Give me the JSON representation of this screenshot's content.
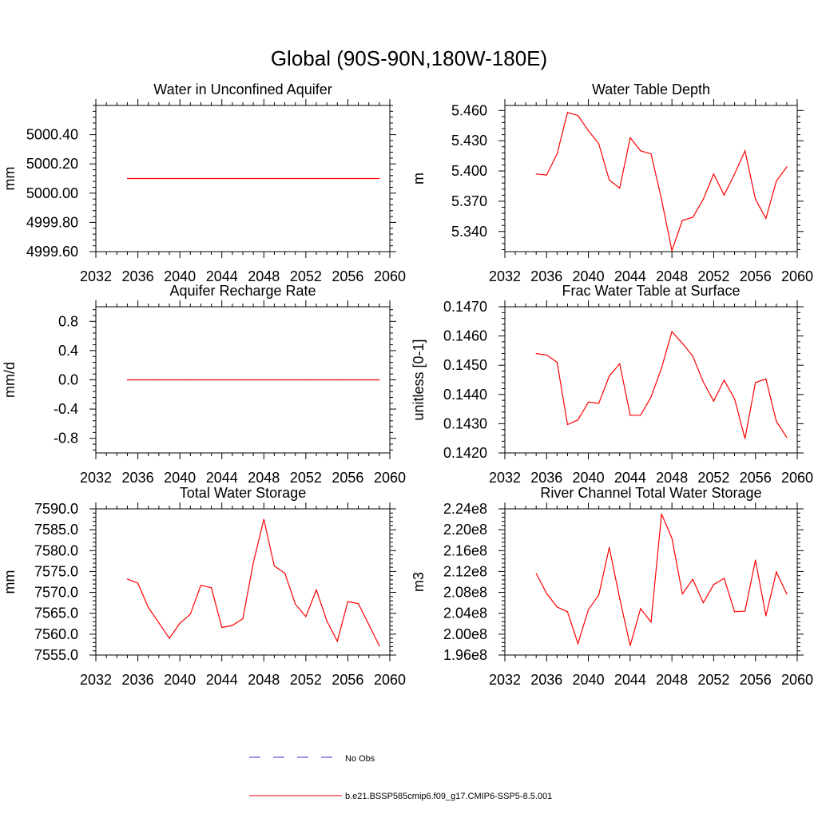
{
  "main_title": "Global (90S-90N,180W-180E)",
  "colors": {
    "model": "#ff0000",
    "obs": "#3333cc",
    "axis": "#000000"
  },
  "legend": {
    "obs_label": "No Obs",
    "model_label": "b.e21.BSSP585cmip6.f09_g17.CMIP6-SSP5-8.5.001"
  },
  "chart_data": [
    {
      "type": "line",
      "title": "Water in Unconfined Aquifer",
      "ylabel": "mm",
      "xlim": [
        2032,
        2060
      ],
      "ylim": [
        4999.6,
        5000.6
      ],
      "xticks": [
        "2032",
        "2036",
        "2040",
        "2044",
        "2048",
        "2052",
        "2056",
        "2060"
      ],
      "yticks": [
        "4999.60",
        "4999.80",
        "5000.00",
        "5000.20",
        "5000.40"
      ],
      "series": [
        {
          "x": [
            2035,
            2036,
            2037,
            2038,
            2039,
            2040,
            2041,
            2042,
            2043,
            2044,
            2045,
            2046,
            2047,
            2048,
            2049,
            2050,
            2051,
            2052,
            2053,
            2054,
            2055,
            2056,
            2057,
            2058,
            2059
          ],
          "values": [
            5000.1,
            5000.1,
            5000.1,
            5000.1,
            5000.1,
            5000.1,
            5000.1,
            5000.1,
            5000.1,
            5000.1,
            5000.1,
            5000.1,
            5000.1,
            5000.1,
            5000.1,
            5000.1,
            5000.1,
            5000.1,
            5000.1,
            5000.1,
            5000.1,
            5000.1,
            5000.1,
            5000.1,
            5000.1
          ]
        }
      ]
    },
    {
      "type": "line",
      "title": "Water Table Depth",
      "ylabel": "m",
      "xlim": [
        2032,
        2060
      ],
      "ylim": [
        5.32,
        5.465
      ],
      "xticks": [
        "2032",
        "2036",
        "2040",
        "2044",
        "2048",
        "2052",
        "2056",
        "2060"
      ],
      "yticks": [
        "5.340",
        "5.370",
        "5.400",
        "5.430",
        "5.460"
      ],
      "series": [
        {
          "x": [
            2035,
            2036,
            2037,
            2038,
            2039,
            2040,
            2041,
            2042,
            2043,
            2044,
            2045,
            2046,
            2047,
            2048,
            2049,
            2050,
            2051,
            2052,
            2053,
            2054,
            2055,
            2056,
            2057,
            2058,
            2059
          ],
          "values": [
            5.397,
            5.396,
            5.417,
            5.458,
            5.455,
            5.44,
            5.427,
            5.391,
            5.383,
            5.433,
            5.42,
            5.417,
            5.372,
            5.321,
            5.351,
            5.354,
            5.372,
            5.397,
            5.376,
            5.397,
            5.42,
            5.372,
            5.353,
            5.39,
            5.404
          ]
        }
      ]
    },
    {
      "type": "line",
      "title": "Aquifer Recharge Rate",
      "ylabel": "mm/d",
      "xlim": [
        2032,
        2060
      ],
      "ylim": [
        -1.0,
        1.0
      ],
      "xticks": [
        "2032",
        "2036",
        "2040",
        "2044",
        "2048",
        "2052",
        "2056",
        "2060"
      ],
      "yticks": [
        "-0.8",
        "-0.4",
        "0.0",
        "0.4",
        "0.8"
      ],
      "series": [
        {
          "x": [
            2035,
            2036,
            2037,
            2038,
            2039,
            2040,
            2041,
            2042,
            2043,
            2044,
            2045,
            2046,
            2047,
            2048,
            2049,
            2050,
            2051,
            2052,
            2053,
            2054,
            2055,
            2056,
            2057,
            2058,
            2059
          ],
          "values": [
            0,
            0,
            0,
            0,
            0,
            0,
            0,
            0,
            0,
            0,
            0,
            0,
            0,
            0,
            0,
            0,
            0,
            0,
            0,
            0,
            0,
            0,
            0,
            0,
            0
          ]
        }
      ]
    },
    {
      "type": "line",
      "title": "Frac Water Table at Surface",
      "ylabel": "unitless [0-1]",
      "xlim": [
        2032,
        2060
      ],
      "ylim": [
        0.142,
        0.147
      ],
      "xticks": [
        "2032",
        "2036",
        "2040",
        "2044",
        "2048",
        "2052",
        "2056",
        "2060"
      ],
      "yticks": [
        "0.1420",
        "0.1430",
        "0.1440",
        "0.1450",
        "0.1460",
        "0.1470"
      ],
      "series": [
        {
          "x": [
            2035,
            2036,
            2037,
            2038,
            2039,
            2040,
            2041,
            2042,
            2043,
            2044,
            2045,
            2046,
            2047,
            2048,
            2049,
            2050,
            2051,
            2052,
            2053,
            2054,
            2055,
            2056,
            2057,
            2058,
            2059
          ],
          "values": [
            0.1454,
            0.14535,
            0.1451,
            0.14297,
            0.14313,
            0.14374,
            0.1437,
            0.14463,
            0.14505,
            0.14329,
            0.14329,
            0.14391,
            0.1449,
            0.14615,
            0.14575,
            0.14531,
            0.14443,
            0.14377,
            0.14449,
            0.14385,
            0.14249,
            0.14441,
            0.14453,
            0.14308,
            0.14253
          ]
        }
      ]
    },
    {
      "type": "line",
      "title": "Total Water Storage",
      "ylabel": "mm",
      "xlim": [
        2032,
        2060
      ],
      "ylim": [
        7555.0,
        7590.0
      ],
      "xticks": [
        "2032",
        "2036",
        "2040",
        "2044",
        "2048",
        "2052",
        "2056",
        "2060"
      ],
      "yticks": [
        "7555.0",
        "7560.0",
        "7565.0",
        "7570.0",
        "7575.0",
        "7580.0",
        "7585.0",
        "7590.0"
      ],
      "series": [
        {
          "x": [
            2035,
            2036,
            2037,
            2038,
            2039,
            2040,
            2041,
            2042,
            2043,
            2044,
            2045,
            2046,
            2047,
            2048,
            2049,
            2050,
            2051,
            2052,
            2053,
            2054,
            2055,
            2056,
            2057,
            2058,
            2059
          ],
          "values": [
            7573.2,
            7572.2,
            7566.4,
            7562.7,
            7559.0,
            7562.6,
            7564.8,
            7571.7,
            7571.1,
            7561.6,
            7562.1,
            7563.7,
            7577.1,
            7587.5,
            7576.3,
            7574.6,
            7567.2,
            7564.2,
            7570.6,
            7563.2,
            7558.3,
            7567.8,
            7567.3,
            7562.3,
            7557.2
          ]
        }
      ]
    },
    {
      "type": "line",
      "title": "River Channel Total Water Storage",
      "ylabel": "m3",
      "xlim": [
        2032,
        2060
      ],
      "ylim": [
        196000000.0,
        224000000.0
      ],
      "xticks": [
        "2032",
        "2036",
        "2040",
        "2044",
        "2048",
        "2052",
        "2056",
        "2060"
      ],
      "yticks": [
        "1.96e8",
        "2.00e8",
        "2.04e8",
        "2.08e8",
        "2.12e8",
        "2.16e8",
        "2.20e8",
        "2.24e8"
      ],
      "series": [
        {
          "x": [
            2035,
            2036,
            2037,
            2038,
            2039,
            2040,
            2041,
            2042,
            2043,
            2044,
            2045,
            2046,
            2047,
            2048,
            2049,
            2050,
            2051,
            2052,
            2053,
            2054,
            2055,
            2056,
            2057,
            2058,
            2059
          ],
          "values": [
            211600000.0,
            207800000.0,
            205200000.0,
            204300000.0,
            198200000.0,
            204700000.0,
            207500000.0,
            216600000.0,
            206800000.0,
            197800000.0,
            204900000.0,
            202300000.0,
            223000000.0,
            218400000.0,
            207700000.0,
            210500000.0,
            206000000.0,
            209500000.0,
            210700000.0,
            204300000.0,
            204400000.0,
            214200000.0,
            203500000.0,
            211900000.0,
            207700000.0
          ]
        }
      ]
    }
  ]
}
